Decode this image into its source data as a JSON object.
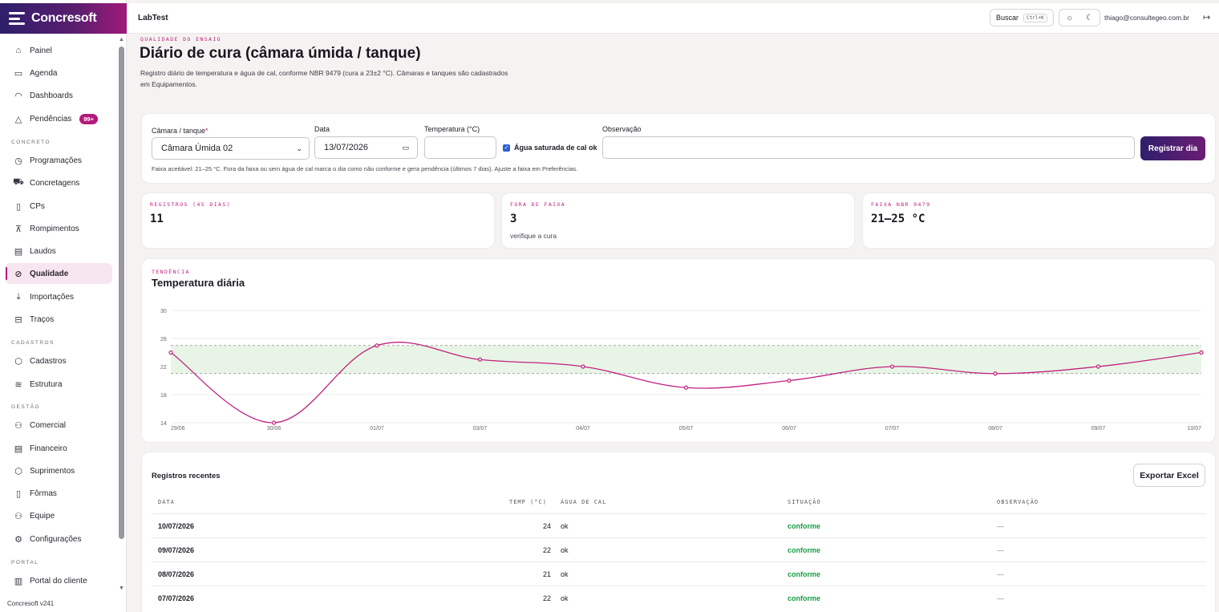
{
  "brand": {
    "name": "Concresoft"
  },
  "sidebar": {
    "items": [
      {
        "label": "Painel",
        "icon": "home-icon"
      },
      {
        "label": "Agenda",
        "icon": "calendar-icon"
      },
      {
        "label": "Dashboards",
        "icon": "gauge-icon"
      },
      {
        "label": "Pendências",
        "icon": "warning-icon",
        "badge": "99+"
      },
      {
        "label": "Programações",
        "icon": "clock-icon"
      },
      {
        "label": "Concretagens",
        "icon": "truck-icon"
      },
      {
        "label": "CPs",
        "icon": "cylinder-icon"
      },
      {
        "label": "Rompimentos",
        "icon": "press-icon"
      },
      {
        "label": "Laudos",
        "icon": "document-icon"
      },
      {
        "label": "Qualidade",
        "icon": "check-circle-icon",
        "active": true
      },
      {
        "label": "Importações",
        "icon": "download-icon"
      },
      {
        "label": "Traços",
        "icon": "mix-icon"
      },
      {
        "label": "Cadastros",
        "icon": "box-icon"
      },
      {
        "label": "Estrutura",
        "icon": "layers-icon"
      },
      {
        "label": "Comercial",
        "icon": "users-icon"
      },
      {
        "label": "Financeiro",
        "icon": "ledger-icon"
      },
      {
        "label": "Suprimentos",
        "icon": "package-icon"
      },
      {
        "label": "Fôrmas",
        "icon": "mold-icon"
      },
      {
        "label": "Equipe",
        "icon": "team-icon"
      },
      {
        "label": "Configurações",
        "icon": "gear-icon"
      },
      {
        "label": "Portal do cliente",
        "icon": "building-icon"
      }
    ],
    "sections": [
      "CONCRETO",
      "CADASTROS",
      "GESTÃO",
      "PORTAL"
    ],
    "version": "Concresoft v241"
  },
  "topbar": {
    "app_name": "LabTest",
    "search_label": "Buscar",
    "search_shortcut": "Ctrl+K",
    "user_email": "thiago@consultegeo.com.br"
  },
  "page": {
    "eyebrow": "QUALIDADE DO ENSAIO",
    "title": "Diário de cura (câmara úmida / tanque)",
    "description": "Registro diário de temperatura e água de cal, conforme NBR 9479 (cura a 23±2 °C). Câmaras e tanques são cadastrados em Equipamentos."
  },
  "form": {
    "camara_label": "Câmara / tanque",
    "camara_value": "Câmara Úmida 02",
    "data_label": "Data",
    "data_value": "13/07/2026",
    "temp_label": "Temperatura (°C)",
    "temp_value": "",
    "agua_label": "Água saturada de cal ok",
    "obs_label": "Observação",
    "obs_value": "",
    "submit_label": "Registrar dia",
    "hint": "Faixa aceitável: 21–25 °C. Fora da faixa ou sem água de cal marca o dia como não conforme e gera pendência (últimos 7 dias). Ajuste a faixa em Preferências."
  },
  "stats": [
    {
      "label": "REGISTROS (45 DIAS)",
      "value": "11",
      "sub": ""
    },
    {
      "label": "FORA DE FAIXA",
      "value": "3",
      "sub": "verifique a cura"
    },
    {
      "label": "FAIXA NBR 9479",
      "value": "21–25 °C",
      "sub": ""
    }
  ],
  "chart": {
    "eyebrow": "TENDÊNCIA",
    "title": "Temperatura diária"
  },
  "chart_data": {
    "type": "line",
    "x": [
      "29/06",
      "30/06",
      "01/07",
      "03/07",
      "04/07",
      "05/07",
      "06/07",
      "07/07",
      "08/07",
      "09/07",
      "10/07"
    ],
    "series": [
      {
        "values": [
          24,
          14,
          25,
          23,
          22,
          19,
          20,
          22,
          21,
          22,
          24
        ]
      }
    ],
    "band": [
      21,
      25
    ],
    "ylim": [
      14,
      30
    ],
    "yticks": [
      14,
      18,
      22,
      26,
      30
    ],
    "line_color": "#c2217f",
    "band_color": "#e8f5e6",
    "grid": true
  },
  "table": {
    "title": "Registros recentes",
    "export_label": "Exportar Excel",
    "headers": [
      "DATA",
      "TEMP (°C)",
      "ÁGUA DE CAL",
      "SITUAÇÃO",
      "OBSERVAÇÃO"
    ],
    "rows": [
      {
        "date": "10/07/2026",
        "temp": "24",
        "cal": "ok",
        "status": "conforme",
        "obs": "—"
      },
      {
        "date": "09/07/2026",
        "temp": "22",
        "cal": "ok",
        "status": "conforme",
        "obs": "—"
      },
      {
        "date": "08/07/2026",
        "temp": "21",
        "cal": "ok",
        "status": "conforme",
        "obs": "—"
      },
      {
        "date": "07/07/2026",
        "temp": "22",
        "cal": "ok",
        "status": "conforme",
        "obs": "—"
      }
    ]
  }
}
